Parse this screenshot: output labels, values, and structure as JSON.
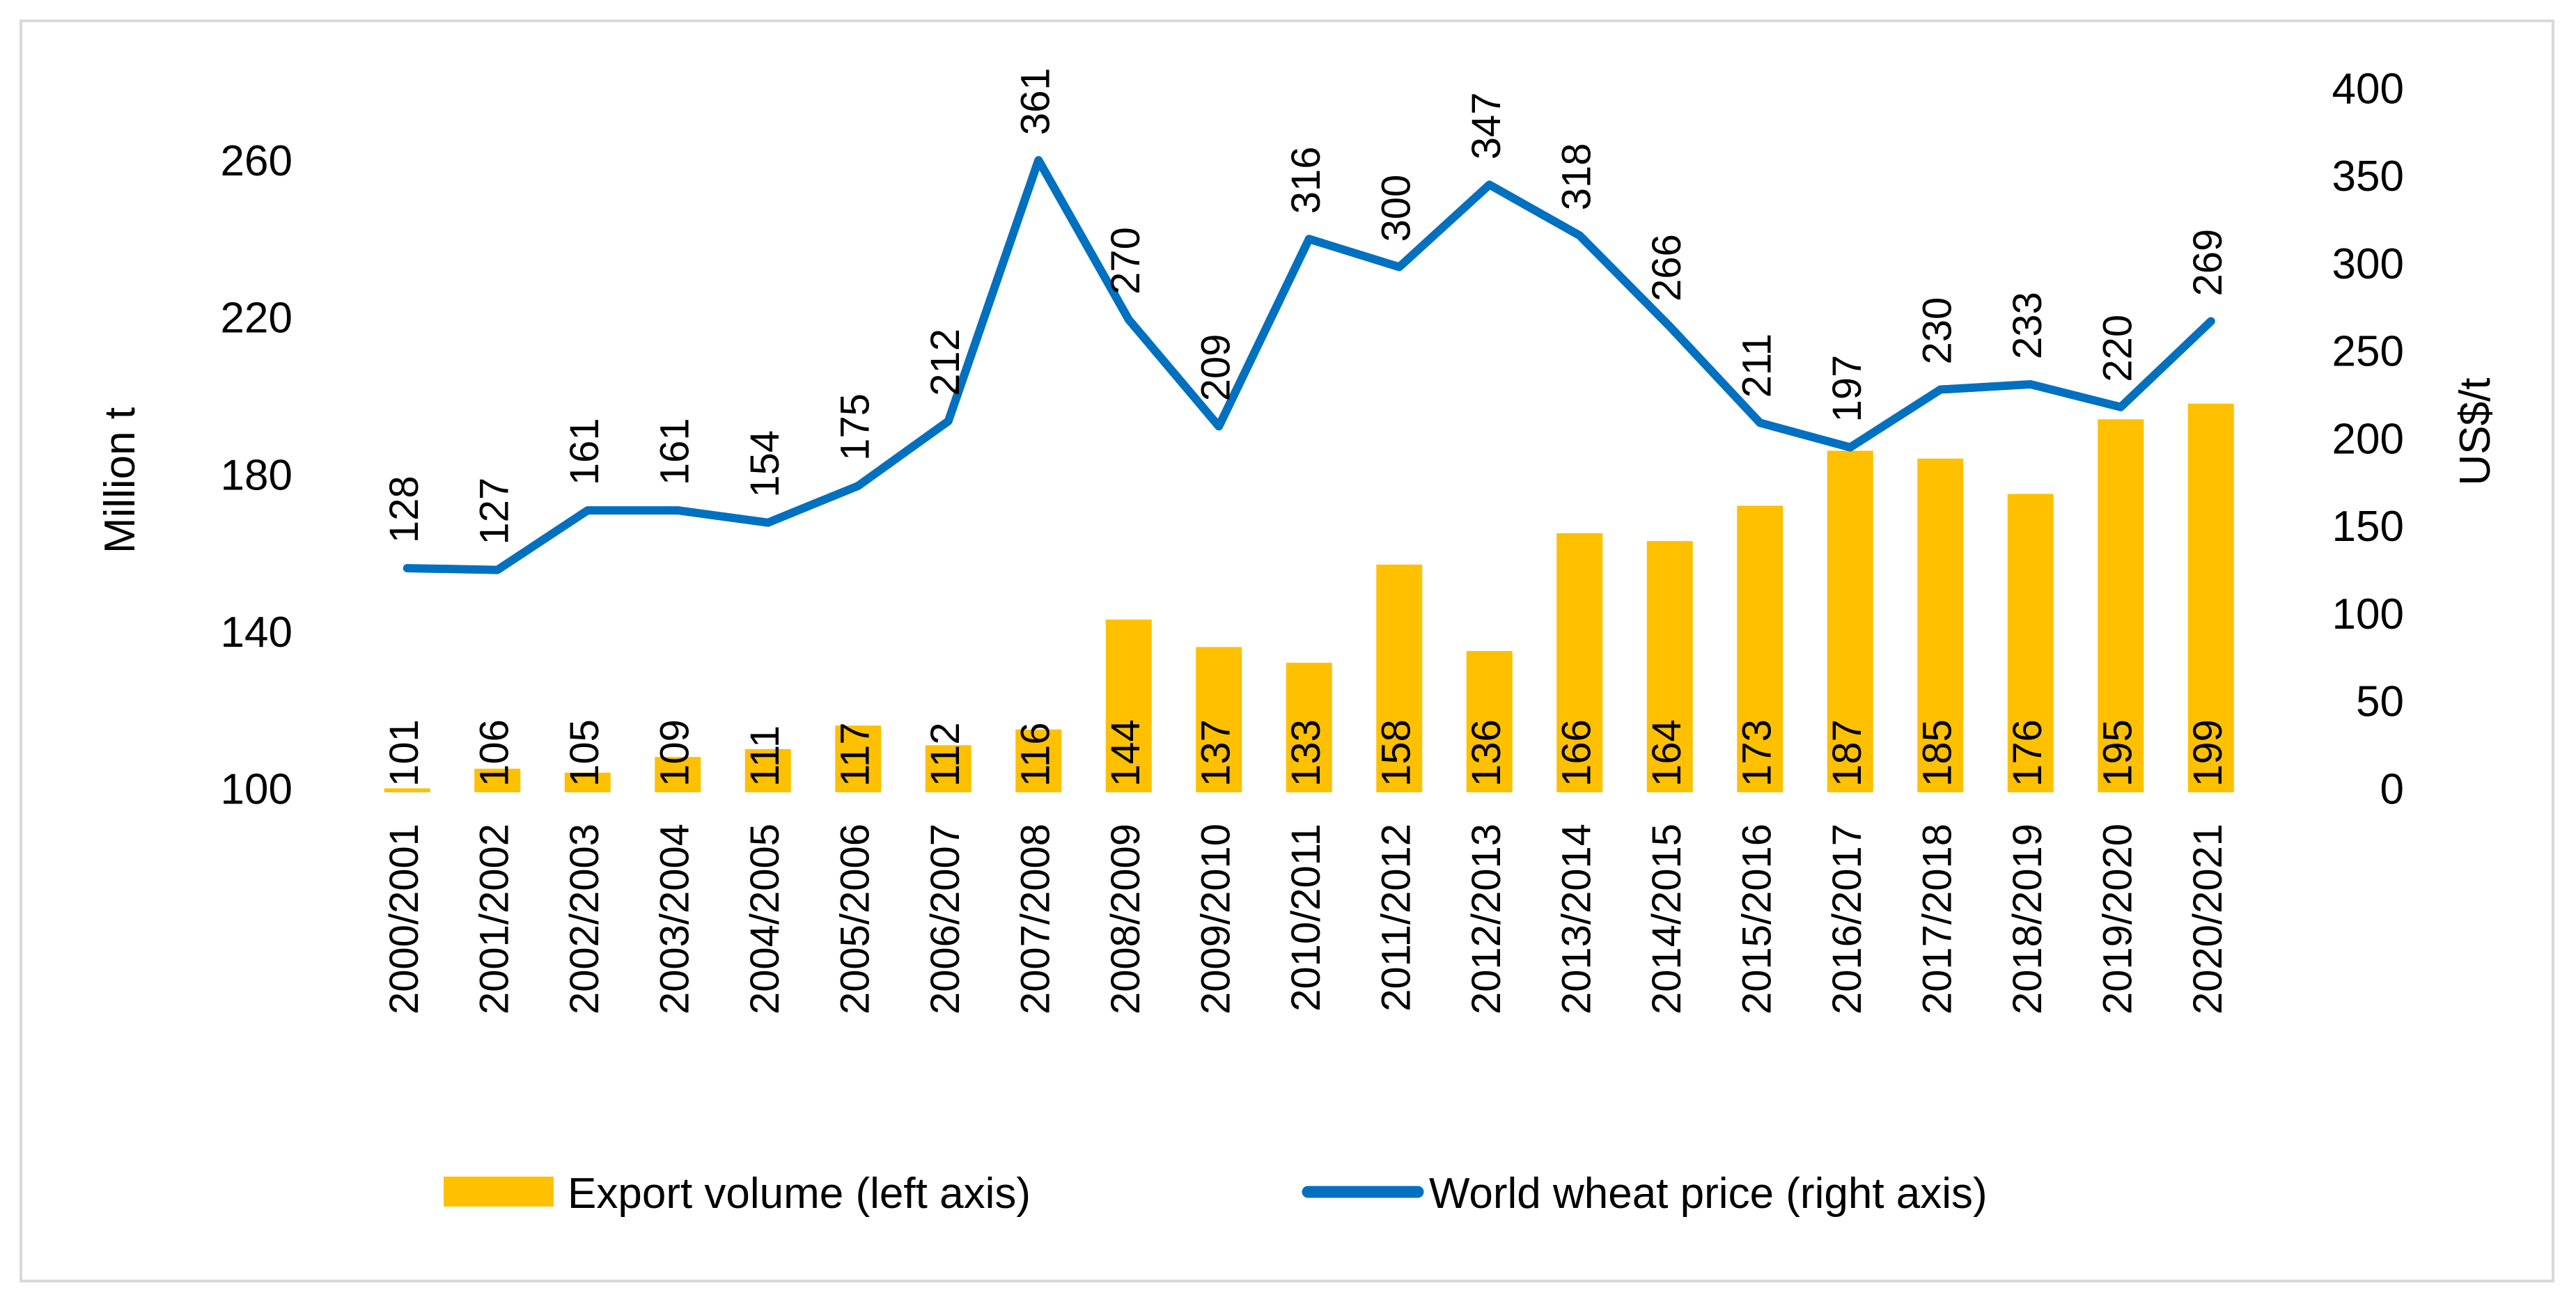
{
  "chart_data": {
    "type": "bar+line",
    "categories": [
      "2000/2001",
      "2001/2002",
      "2002/2003",
      "2003/2004",
      "2004/2005",
      "2005/2006",
      "2006/2007",
      "2007/2008",
      "2008/2009",
      "2009/2010",
      "2010/2011",
      "2011/2012",
      "2012/2013",
      "2013/2014",
      "2014/2015",
      "2015/2016",
      "2016/2017",
      "2017/2018",
      "2018/2019",
      "2019/2020",
      "2020/2021"
    ],
    "series": [
      {
        "name": "Export volume (left axis)",
        "kind": "bar",
        "axis": "left",
        "color": "#ffc000",
        "values": [
          101,
          106,
          105,
          109,
          111,
          117,
          112,
          116,
          144,
          137,
          133,
          158,
          136,
          166,
          164,
          173,
          187,
          185,
          176,
          195,
          199
        ]
      },
      {
        "name": "World wheat price (right axis)",
        "kind": "line",
        "axis": "right",
        "color": "#0070c0",
        "values": [
          128,
          127,
          161,
          161,
          154,
          175,
          212,
          361,
          270,
          209,
          316,
          300,
          347,
          318,
          266,
          211,
          197,
          230,
          233,
          220,
          269
        ]
      }
    ],
    "left_axis": {
      "label": "Million t",
      "min": 100,
      "max": 280,
      "ticks": [
        100,
        140,
        180,
        220,
        260
      ]
    },
    "right_axis": {
      "label": "US$/t",
      "min": 0,
      "max": 400,
      "ticks": [
        0,
        50,
        100,
        150,
        200,
        250,
        300,
        350,
        400
      ]
    },
    "legend": {
      "position": "bottom",
      "bar_label": "Export volume (left axis)",
      "line_label": "World wheat price (right axis)"
    },
    "grid": false
  }
}
